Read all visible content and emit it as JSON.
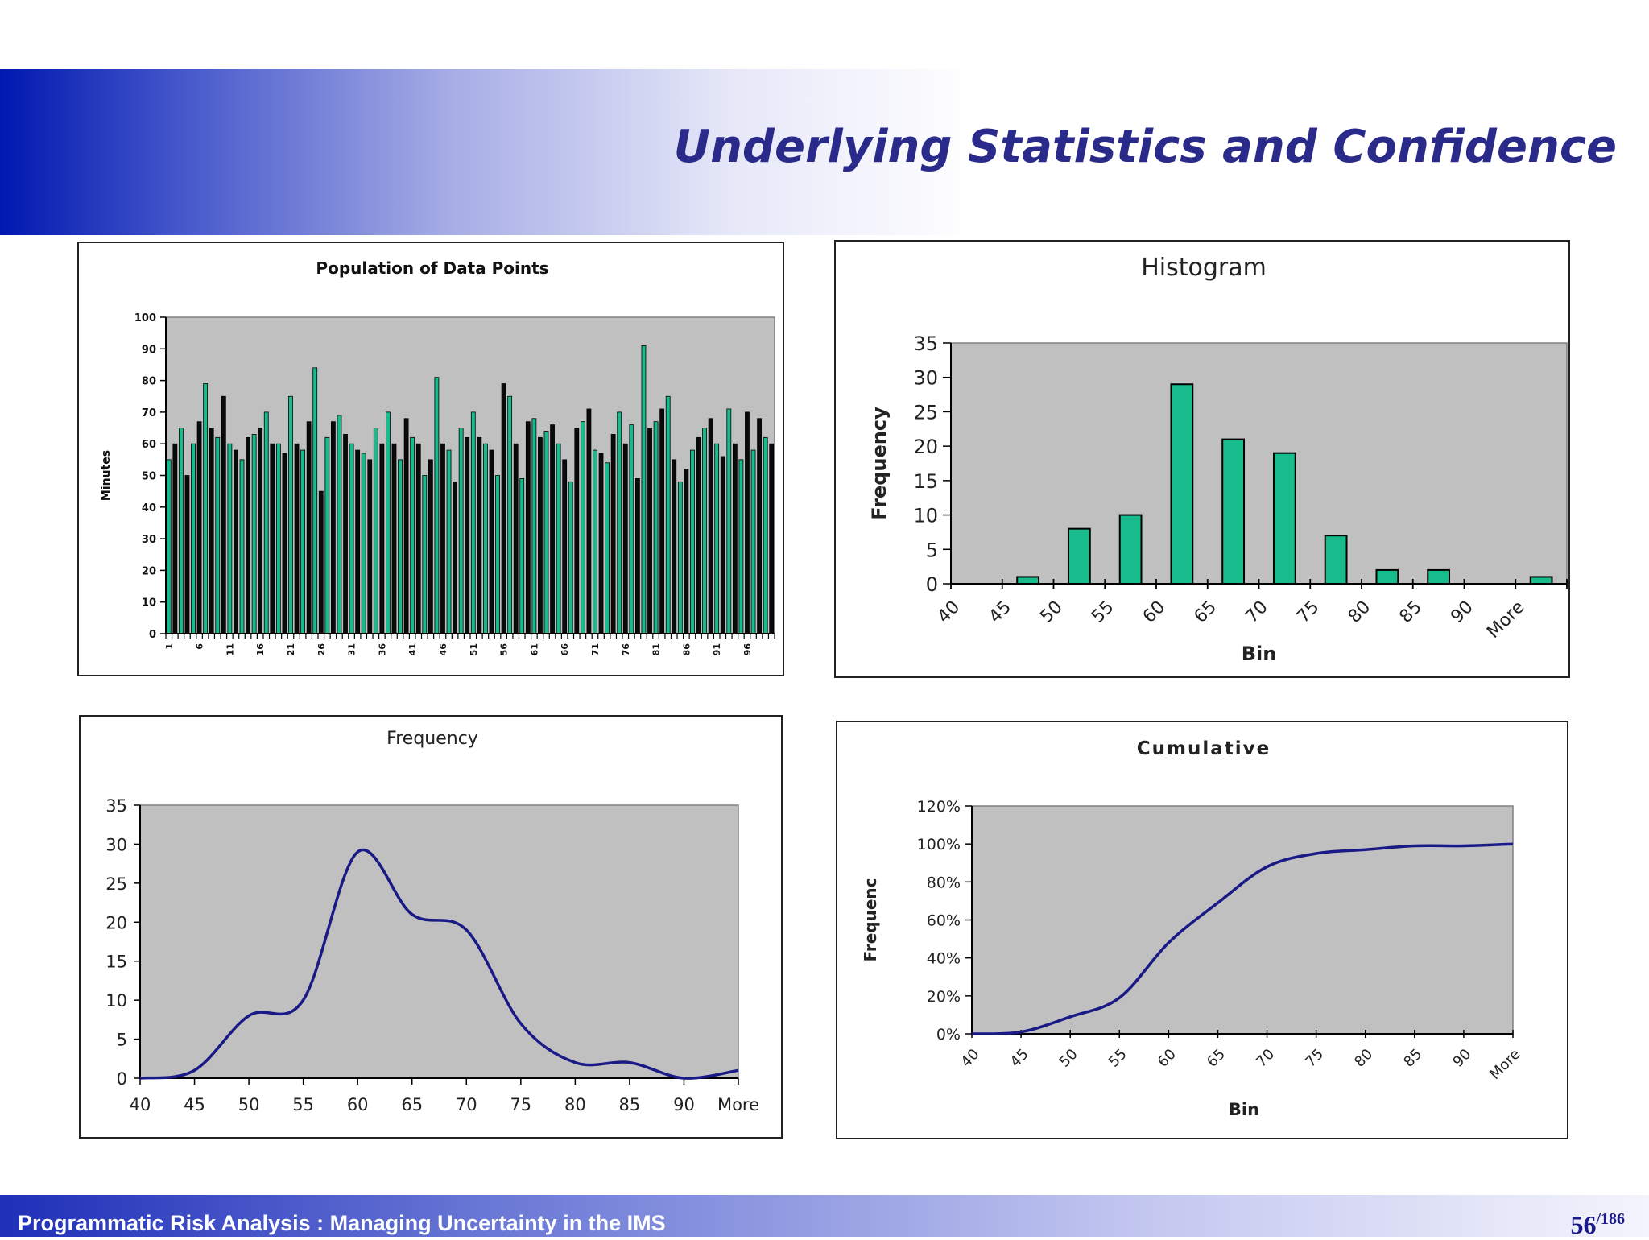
{
  "slide": {
    "title": "Underlying Statistics and Confidence",
    "footer": "Programmatic Risk Analysis : Managing Uncertainty in the IMS",
    "page_current": "56",
    "page_separator": "/",
    "page_total": "186"
  },
  "colors": {
    "plot_bg": "#c0c0c0",
    "bar_green": "#17bb8c",
    "bar_black": "#0a0a0a",
    "line_navy": "#1a1a86",
    "title_navy": "#2a2a8a"
  },
  "chart_data": [
    {
      "type": "bar",
      "title": "Population of Data Points",
      "xlabel": "",
      "ylabel": "Minutes",
      "ylim": [
        0,
        100
      ],
      "yticks": [
        0,
        10,
        20,
        30,
        40,
        50,
        60,
        70,
        80,
        90,
        100
      ],
      "categories": [
        1,
        2,
        3,
        4,
        5,
        6,
        7,
        8,
        9,
        10,
        11,
        12,
        13,
        14,
        15,
        16,
        17,
        18,
        19,
        20,
        21,
        22,
        23,
        24,
        25,
        26,
        27,
        28,
        29,
        30,
        31,
        32,
        33,
        34,
        35,
        36,
        37,
        38,
        39,
        40,
        41,
        42,
        43,
        44,
        45,
        46,
        47,
        48,
        49,
        50,
        51,
        52,
        53,
        54,
        55,
        56,
        57,
        58,
        59,
        60,
        61,
        62,
        63,
        64,
        65,
        66,
        67,
        68,
        69,
        70,
        71,
        72,
        73,
        74,
        75,
        76,
        77,
        78,
        79,
        80,
        81,
        82,
        83,
        84,
        85,
        86,
        87,
        88,
        89,
        90,
        91,
        92,
        93,
        94,
        95,
        96,
        97,
        98,
        99,
        100
      ],
      "category_labels_shown": [
        "1",
        "6",
        "11",
        "16",
        "21",
        "26",
        "31",
        "36",
        "41",
        "46",
        "51",
        "56",
        "61",
        "66",
        "71",
        "76",
        "81",
        "86",
        "91",
        "96"
      ],
      "values": [
        55,
        60,
        65,
        50,
        60,
        67,
        79,
        65,
        62,
        75,
        60,
        58,
        55,
        62,
        63,
        65,
        70,
        60,
        60,
        57,
        75,
        60,
        58,
        67,
        84,
        45,
        62,
        67,
        69,
        63,
        60,
        58,
        57,
        55,
        65,
        60,
        70,
        60,
        55,
        68,
        62,
        60,
        50,
        55,
        81,
        60,
        58,
        48,
        65,
        62,
        70,
        62,
        60,
        58,
        50,
        79,
        75,
        60,
        49,
        67,
        68,
        62,
        64,
        66,
        60,
        55,
        48,
        65,
        67,
        71,
        58,
        57,
        54,
        63,
        70,
        60,
        66,
        49,
        91,
        65,
        67,
        71,
        75,
        55,
        48,
        52,
        58,
        62,
        65,
        68,
        60,
        56,
        71,
        60,
        55,
        70,
        58,
        68,
        62,
        60
      ],
      "colors_pattern": [
        "bar_green",
        "bar_black"
      ],
      "grid": false,
      "legend": "none"
    },
    {
      "type": "bar",
      "title": "Histogram",
      "xlabel": "Bin",
      "ylabel": "Frequency",
      "ylim": [
        0,
        35
      ],
      "yticks": [
        0,
        5,
        10,
        15,
        20,
        25,
        30,
        35
      ],
      "categories": [
        "40",
        "45",
        "50",
        "55",
        "60",
        "65",
        "70",
        "75",
        "80",
        "85",
        "90",
        "More"
      ],
      "values": [
        0,
        1,
        8,
        10,
        29,
        21,
        19,
        7,
        2,
        2,
        0,
        1
      ],
      "grid": false,
      "legend": "none"
    },
    {
      "type": "line",
      "title": "Frequency",
      "xlabel": "",
      "ylabel": "",
      "ylim": [
        0,
        35
      ],
      "yticks": [
        0,
        5,
        10,
        15,
        20,
        25,
        30,
        35
      ],
      "categories": [
        "40",
        "45",
        "50",
        "55",
        "60",
        "65",
        "70",
        "75",
        "80",
        "85",
        "90",
        "More"
      ],
      "values": [
        0,
        1,
        8,
        10,
        29,
        21,
        19,
        7,
        2,
        2,
        0,
        1
      ],
      "grid": false,
      "legend": "none"
    },
    {
      "type": "line",
      "title": "Cumulative",
      "xlabel": "Bin",
      "ylabel": "Frequenc",
      "ylim": [
        0,
        120
      ],
      "yticks": [
        "0%",
        "20%",
        "40%",
        "60%",
        "80%",
        "100%",
        "120%"
      ],
      "categories": [
        "40",
        "45",
        "50",
        "55",
        "60",
        "65",
        "70",
        "75",
        "80",
        "85",
        "90",
        "More"
      ],
      "values": [
        0,
        1,
        9,
        19,
        48,
        69,
        88,
        95,
        97,
        99,
        99,
        100
      ],
      "grid": false,
      "legend": "none"
    }
  ]
}
